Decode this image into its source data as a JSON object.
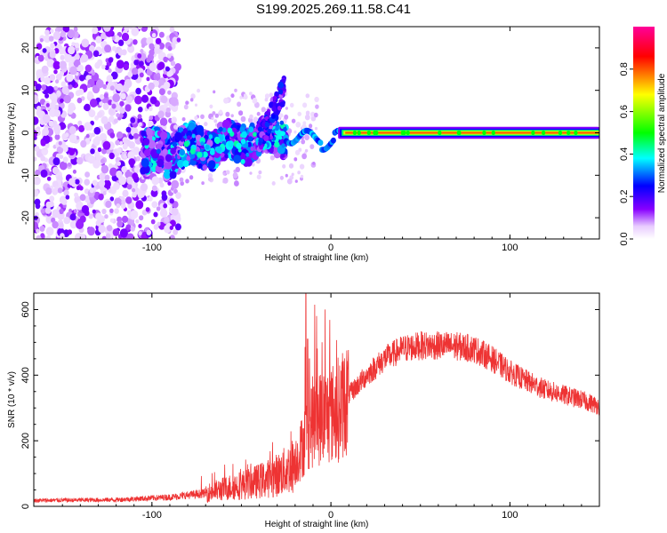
{
  "title": "S199.2025.269.11.58.C41",
  "chart_data": [
    {
      "type": "heatmap",
      "xlabel": "Height of straight line (km)",
      "ylabel": "Frequency (Hz)",
      "xlim": [
        -166,
        150
      ],
      "ylim": [
        -25,
        25
      ],
      "x_ticks": [
        -100,
        0,
        100
      ],
      "y_ticks": [
        -20,
        -10,
        0,
        10,
        20
      ],
      "colorbar": {
        "label": "Normalized spectral amplitude",
        "range": [
          0,
          1
        ],
        "ticks": [
          0.0,
          0.2,
          0.4,
          0.6,
          0.8
        ],
        "colors": [
          "#ffffff",
          "#e8ccff",
          "#8800ff",
          "#0000ff",
          "#00ffff",
          "#00ff00",
          "#ffff00",
          "#ff0000",
          "#ff00aa"
        ]
      },
      "features": {
        "noise_region_x": [
          -166,
          -85
        ],
        "scatter_band_x": [
          -105,
          -25
        ],
        "scatter_band_center_hz": [
          -5,
          -1
        ],
        "steady_line_x": [
          0,
          150
        ],
        "steady_line_hz": 0,
        "steady_line_amplitude": 0.8
      }
    },
    {
      "type": "line",
      "xlabel": "Height of straight line (km)",
      "ylabel": "SNR (10 * v/v)",
      "xlim": [
        -166,
        150
      ],
      "ylim": [
        0,
        650
      ],
      "x_ticks": [
        -100,
        0,
        100
      ],
      "y_ticks": [
        0,
        200,
        400,
        600
      ],
      "series": [
        {
          "name": "SNR",
          "color": "#ee3333",
          "envelope_x": [
            -166,
            -120,
            -90,
            -70,
            -55,
            -45,
            -35,
            -28,
            -22,
            -18,
            -14,
            -12,
            -8,
            -4,
            0,
            5,
            10,
            20,
            30,
            40,
            50,
            60,
            70,
            80,
            90,
            100,
            110,
            120,
            130,
            140,
            150
          ],
          "envelope_y": [
            18,
            20,
            28,
            40,
            60,
            70,
            85,
            100,
            120,
            155,
            215,
            250,
            265,
            275,
            280,
            300,
            340,
            400,
            450,
            480,
            490,
            490,
            488,
            480,
            450,
            410,
            380,
            355,
            340,
            325,
            305
          ],
          "spikes": [
            {
              "x": -14,
              "y": 650
            },
            {
              "x": -13,
              "y": 510
            },
            {
              "x": -12,
              "y": 450
            }
          ]
        }
      ]
    }
  ]
}
